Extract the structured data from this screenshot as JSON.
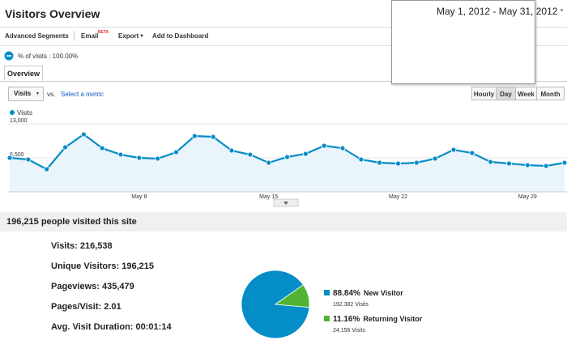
{
  "header": {
    "title": "Visitors Overview",
    "date_range": "May 1, 2012 - May 31, 2012"
  },
  "toolbar": {
    "items": [
      "Advanced Segments",
      "Email",
      "Export",
      "Add to Dashboard"
    ],
    "badge": "BETA"
  },
  "segment": "% of visits : 100.00%",
  "tab": "Overview",
  "controls": {
    "metric": "Visits",
    "vs": "vs.",
    "link": "Select a metric",
    "intervals": [
      "Hourly",
      "Day",
      "Week",
      "Month"
    ],
    "selected": 1
  },
  "chart_data": [
    {
      "type": "line",
      "categories": [
        null,
        null,
        null,
        null,
        null,
        null,
        null,
        "May 8",
        null,
        null,
        null,
        null,
        null,
        null,
        "May 15",
        null,
        null,
        null,
        null,
        null,
        null,
        "May 22",
        null,
        null,
        null,
        null,
        null,
        null,
        "May 29",
        null,
        null
      ],
      "series": [
        {
          "name": "Visits",
          "color": "#058dc7",
          "values": [
            6500,
            6190,
            4330,
            8510,
            10990,
            8360,
            7120,
            6500,
            6350,
            7580,
            10680,
            10520,
            7890,
            7120,
            5570,
            6650,
            7270,
            8820,
            8360,
            6190,
            5570,
            5420,
            5570,
            6350,
            8050,
            7430,
            5730,
            5420,
            5110,
            4950,
            5570
          ]
        }
      ],
      "ylim": [
        0,
        13000
      ],
      "yticks": [
        {
          "value": 13000,
          "label": "13,000"
        },
        {
          "value": 6500,
          "label": "6,500"
        }
      ],
      "grid": true,
      "fill": true
    },
    {
      "type": "pie",
      "categories": [
        "New Visitor",
        "Returning Visitor"
      ],
      "values": [
        88.84,
        11.16
      ],
      "value_labels": [
        "88.84%",
        "11.16%"
      ],
      "details": [
        "192,382 Visits",
        "24,156 Visits"
      ],
      "colors": [
        "#058dc7",
        "#50b432"
      ]
    }
  ],
  "summary": {
    "heading": "196,215 people visited this site",
    "metrics": [
      {
        "label": "Visits:",
        "value": "216,538"
      },
      {
        "label": "Unique Visitors:",
        "value": "196,215"
      },
      {
        "label": "Pageviews:",
        "value": "435,479"
      },
      {
        "label": "Pages/Visit:",
        "value": "2.01"
      },
      {
        "label": "Avg. Visit Duration:",
        "value": "00:01:14"
      }
    ]
  }
}
